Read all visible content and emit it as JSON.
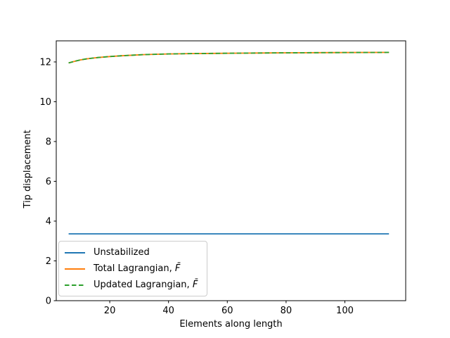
{
  "chart_data": {
    "type": "line",
    "title": "",
    "xlabel": "Elements along length",
    "ylabel": "Tip displacement",
    "xlim": [
      1.8,
      120.7
    ],
    "ylim": [
      0,
      13.06
    ],
    "xticks": [
      20,
      40,
      60,
      80,
      100
    ],
    "yticks": [
      0,
      2,
      4,
      6,
      8,
      10,
      12
    ],
    "grid": false,
    "legend_position": "lower left",
    "background": "#ffffff",
    "x": [
      6,
      8,
      10,
      12,
      14,
      16,
      20,
      24,
      28,
      32,
      40,
      48,
      56,
      64,
      80,
      96,
      115
    ],
    "series": [
      {
        "name": "Unstabilized",
        "color": "#1f77b4",
        "style": "solid",
        "values": [
          3.36,
          3.36,
          3.36,
          3.36,
          3.36,
          3.36,
          3.36,
          3.36,
          3.36,
          3.36,
          3.36,
          3.36,
          3.36,
          3.36,
          3.36,
          3.36,
          3.36
        ]
      },
      {
        "name": "Total Lagrangian, F̄",
        "color": "#ff7f0e",
        "style": "solid",
        "values": [
          11.95,
          12.03,
          12.1,
          12.15,
          12.19,
          12.22,
          12.27,
          12.31,
          12.34,
          12.37,
          12.4,
          12.42,
          12.43,
          12.44,
          12.46,
          12.47,
          12.48
        ]
      },
      {
        "name": "Updated Lagrangian, F̄",
        "color": "#2ca02c",
        "style": "dashed",
        "values": [
          11.95,
          12.03,
          12.1,
          12.15,
          12.19,
          12.22,
          12.27,
          12.31,
          12.34,
          12.37,
          12.4,
          12.42,
          12.43,
          12.44,
          12.46,
          12.47,
          12.48
        ]
      }
    ]
  },
  "legend": {
    "items": [
      {
        "prefix": "Unstabilized",
        "symbol": ""
      },
      {
        "prefix": "Total Lagrangian, ",
        "symbol": "F̄"
      },
      {
        "prefix": "Updated Lagrangian, ",
        "symbol": "F̄"
      }
    ]
  }
}
